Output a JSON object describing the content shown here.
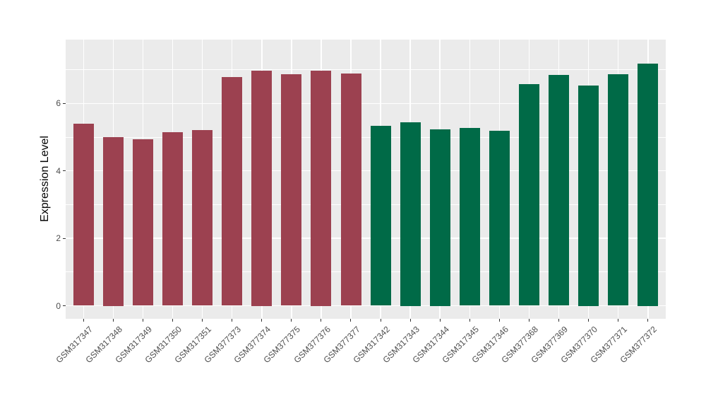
{
  "figure": {
    "background": "#FFFFFF",
    "panel_background": "#EBEBEB",
    "gridline_color": "#FFFFFF",
    "tick_mark_color": "#333333",
    "axis_text_color": "#4D4D4D",
    "axis_title_color": "#000000"
  },
  "chart_data": {
    "type": "bar",
    "title": "",
    "xlabel": "",
    "ylabel": "Expression Level",
    "ylim": [
      0,
      7.56
    ],
    "yticks": [
      0,
      2,
      4,
      6
    ],
    "grid": true,
    "legend": false,
    "categories": [
      "GSM317347",
      "GSM317348",
      "GSM317349",
      "GSM317350",
      "GSM317351",
      "GSM377373",
      "GSM377374",
      "GSM377375",
      "GSM377376",
      "GSM377377",
      "GSM317342",
      "GSM317343",
      "GSM317344",
      "GSM317345",
      "GSM317346",
      "GSM377368",
      "GSM377369",
      "GSM377370",
      "GSM377371",
      "GSM377372"
    ],
    "values": [
      5.4,
      5.0,
      4.93,
      5.15,
      5.2,
      6.78,
      6.98,
      6.86,
      6.98,
      6.88,
      5.34,
      5.45,
      5.24,
      5.27,
      5.18,
      6.58,
      6.84,
      6.54,
      6.86,
      7.18
    ],
    "bar_colors": [
      "#9C4150",
      "#9C4150",
      "#9C4150",
      "#9C4150",
      "#9C4150",
      "#9C4150",
      "#9C4150",
      "#9C4150",
      "#9C4150",
      "#9C4150",
      "#006A47",
      "#006A47",
      "#006A47",
      "#006A47",
      "#006A47",
      "#006A47",
      "#006A47",
      "#006A47",
      "#006A47",
      "#006A47"
    ]
  }
}
